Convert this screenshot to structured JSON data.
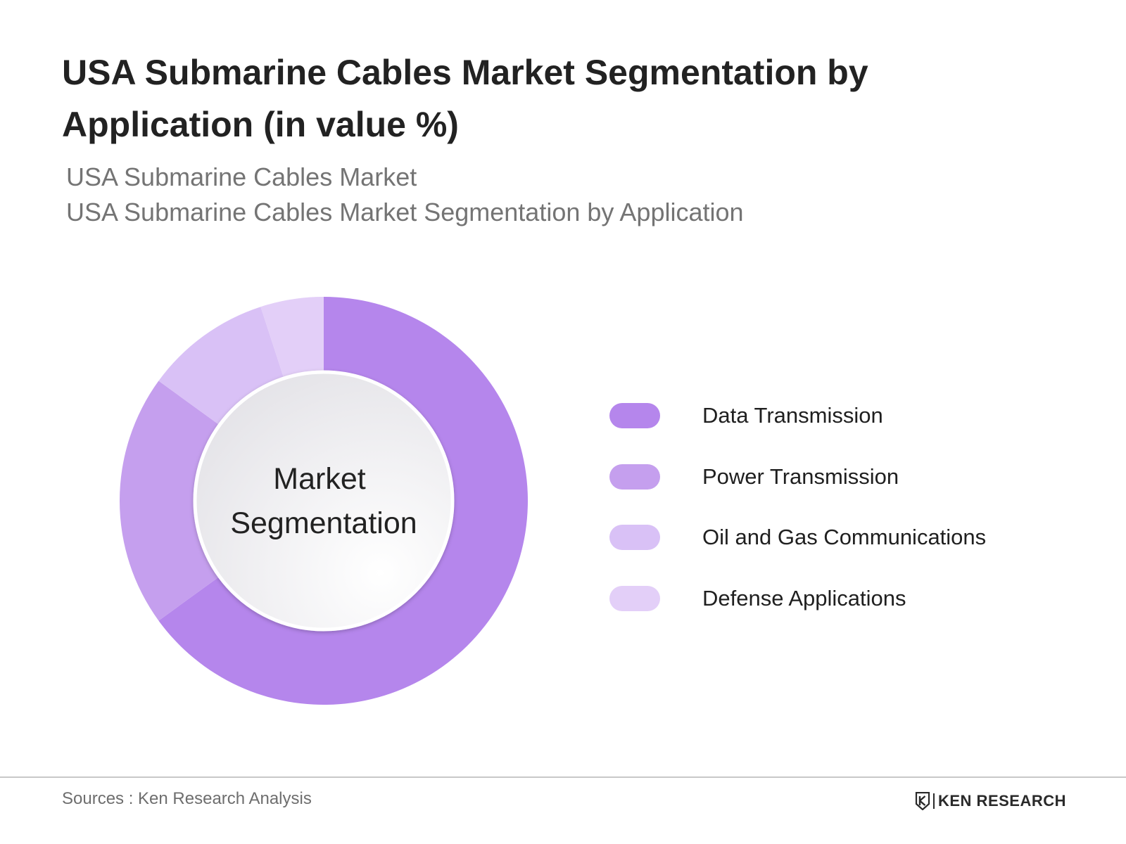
{
  "header": {
    "title": "USA Submarine Cables Market Segmentation by Application (in value %)",
    "subtitle_line1": "USA Submarine Cables Market",
    "subtitle_line2": "USA Submarine Cables Market Segmentation by Application"
  },
  "chart_data": {
    "type": "pie",
    "variant": "donut",
    "categories": [
      "Data Transmission",
      "Power Transmission",
      "Oil and Gas Communications",
      "Defense Applications"
    ],
    "values": [
      65,
      20,
      10,
      5
    ],
    "colors": [
      "#b586ec",
      "#c59fee",
      "#d9c1f6",
      "#e3cff8"
    ],
    "center_label_line1": "Market",
    "center_label_line2": "Segmentation",
    "legend_placement": "right"
  },
  "footer": {
    "source": "Sources : Ken Research Analysis",
    "brand": "KEN RESEARCH",
    "brand_logo_icon": "ken-research-logo-icon"
  }
}
